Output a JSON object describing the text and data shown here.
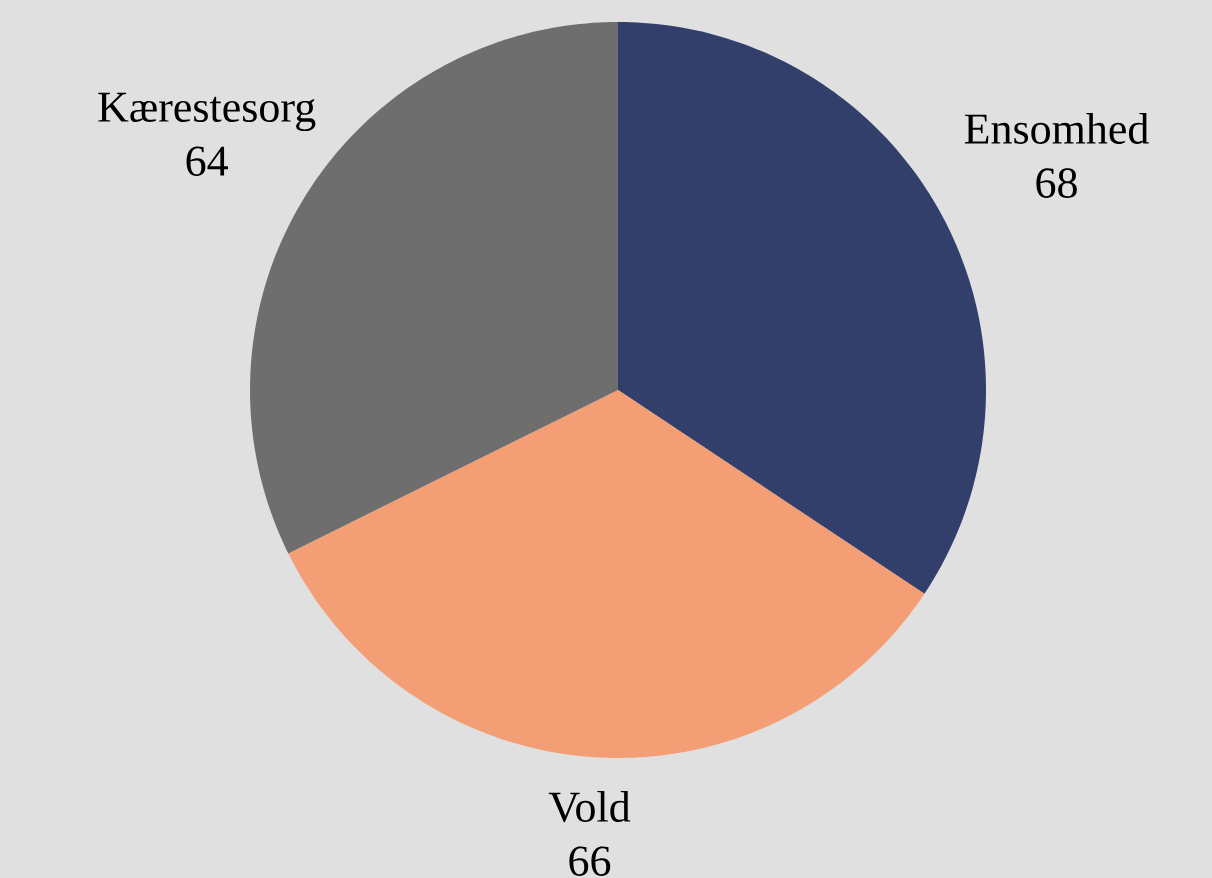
{
  "chart_data": {
    "type": "pie",
    "categories": [
      "Ensomhed",
      "Vold",
      "Kærestesorg"
    ],
    "values": [
      68,
      66,
      64
    ],
    "colors": [
      "#323f6b",
      "#f49e76",
      "#6e6e6e"
    ],
    "data_labels": true
  }
}
